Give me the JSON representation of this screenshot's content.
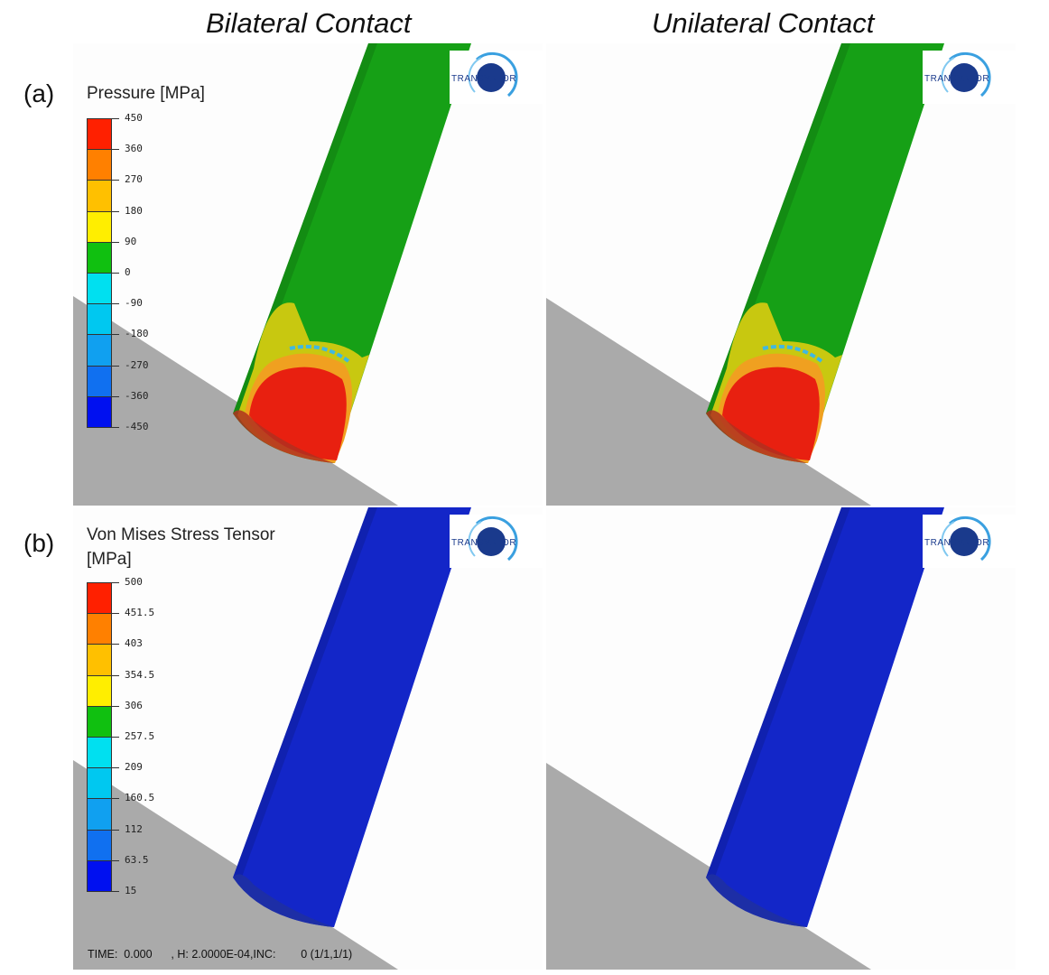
{
  "columns": {
    "left": "Bilateral Contact",
    "right": "Unilateral Contact"
  },
  "rows": {
    "a": "(a)",
    "b": "(b)"
  },
  "logo_text": "TRANSVALOR",
  "pressure_legend": {
    "title": "Pressure [MPa]",
    "ticks": [
      "450",
      "360",
      "270",
      "180",
      "90",
      "0",
      "-90",
      "-180",
      "-270",
      "-360",
      "-450"
    ],
    "colors": [
      "#ff2000",
      "#ff8000",
      "#ffc000",
      "#ffee00",
      "#10c010",
      "#00e0f0",
      "#00c8f0",
      "#10a0f0",
      "#1070f0",
      "#0010f0"
    ]
  },
  "vonmises_legend": {
    "title": "Von Mises Stress Tensor [MPa]",
    "ticks": [
      "500",
      "451.5",
      "403",
      "354.5",
      "306",
      "257.5",
      "209",
      "160.5",
      "112",
      "63.5",
      "15"
    ],
    "colors": [
      "#ff2000",
      "#ff8000",
      "#ffc000",
      "#ffee00",
      "#10c010",
      "#00e0f0",
      "#00c8f0",
      "#10a0f0",
      "#1070f0",
      "#0010f0"
    ]
  },
  "status": {
    "time": "TIME:  0.000",
    "h": ", H: 2.0000E-04,INC:",
    "inc": "0 (1/1,1/1)"
  },
  "colors": {
    "ground": "#aaaaaa",
    "pressure_body": "#16a016",
    "stress_body": "#1326c8",
    "contact_red": "#e82010"
  }
}
